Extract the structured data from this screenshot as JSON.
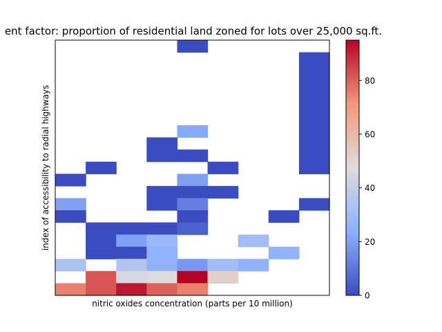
{
  "chart_data": {
    "type": "heatmap",
    "title": "ent factor: proportion of residential land zoned for lots over 25,000 sq.ft.",
    "xlabel": "nitric oxides concentration (parts per 10 million)",
    "ylabel": "index of accessibility to radial highways",
    "x_ticks_shown": false,
    "y_ticks_shown": false,
    "n_cols": 9,
    "n_rows": 21,
    "row_order": "top_to_bottom",
    "colormap": "coolwarm",
    "grid": false,
    "missing_color": "#ffffff",
    "colorbar": {
      "min": 0,
      "max": 95,
      "ticks": [
        0,
        20,
        40,
        60,
        80
      ],
      "tick_labels": [
        "0",
        "20",
        "40",
        "60",
        "80"
      ],
      "placement": "right"
    },
    "values": [
      [
        null,
        null,
        null,
        null,
        0,
        null,
        null,
        null,
        null
      ],
      [
        null,
        null,
        null,
        null,
        null,
        null,
        null,
        null,
        0
      ],
      [
        null,
        null,
        null,
        null,
        null,
        null,
        null,
        null,
        0
      ],
      [
        null,
        null,
        null,
        null,
        null,
        null,
        null,
        null,
        0
      ],
      [
        null,
        null,
        null,
        null,
        null,
        null,
        null,
        null,
        0
      ],
      [
        null,
        null,
        null,
        null,
        null,
        null,
        null,
        null,
        0
      ],
      [
        null,
        null,
        null,
        null,
        null,
        null,
        null,
        null,
        0
      ],
      [
        null,
        null,
        null,
        null,
        22,
        null,
        null,
        null,
        0
      ],
      [
        null,
        null,
        null,
        0,
        null,
        null,
        null,
        null,
        0
      ],
      [
        null,
        null,
        null,
        0,
        0,
        null,
        null,
        null,
        0
      ],
      [
        null,
        0,
        null,
        null,
        null,
        0,
        null,
        null,
        0
      ],
      [
        0,
        null,
        null,
        null,
        20,
        null,
        null,
        null,
        null
      ],
      [
        null,
        null,
        null,
        0,
        0,
        0,
        null,
        null,
        null
      ],
      [
        20,
        null,
        null,
        0,
        12,
        null,
        null,
        null,
        0
      ],
      [
        0,
        null,
        null,
        null,
        0,
        null,
        null,
        0,
        null
      ],
      [
        null,
        0,
        0,
        0,
        5,
        null,
        null,
        null,
        null
      ],
      [
        null,
        0,
        20,
        28,
        null,
        null,
        30,
        null,
        null
      ],
      [
        null,
        0,
        0,
        25,
        null,
        null,
        null,
        25,
        null
      ],
      [
        33,
        null,
        35,
        25,
        18,
        30,
        25,
        null,
        null
      ],
      [
        null,
        82,
        45,
        48,
        95,
        52,
        null,
        null,
        null
      ],
      [
        75,
        82,
        92,
        80,
        75,
        null,
        null,
        null,
        null
      ]
    ]
  }
}
